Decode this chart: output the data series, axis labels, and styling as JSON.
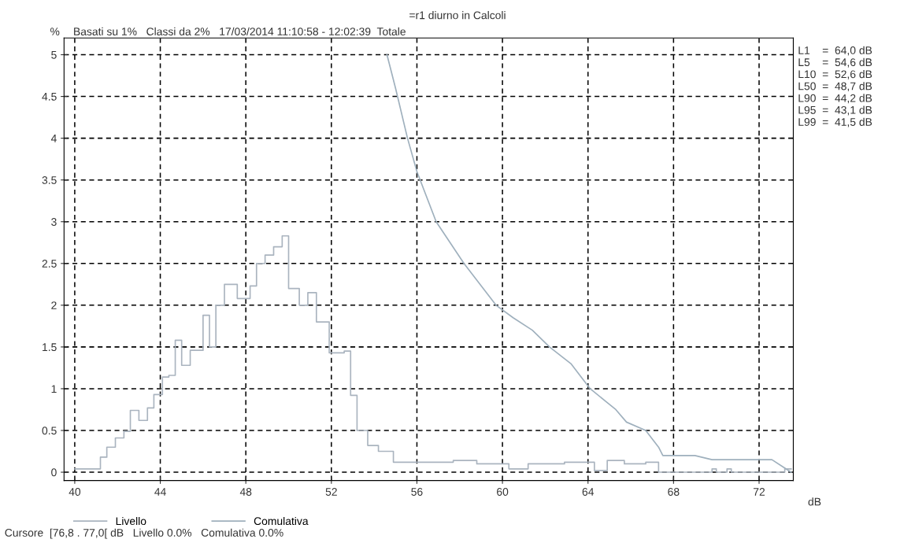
{
  "chart_data": {
    "type": "step",
    "title": "=r1 diurno in Calcoli",
    "subtitle": "Basati su 1%   Classi da 2%   17/03/2014 11:10:58 - 12:02:39  Totale",
    "ylabel": "%",
    "xlabel": "dB",
    "xlim": [
      39.5,
      73.6
    ],
    "xticks": [
      40,
      44,
      48,
      52,
      56,
      60,
      64,
      68,
      72
    ],
    "ylim": [
      -0.1,
      5.2
    ],
    "yticks": [
      0,
      0.5,
      1,
      1.5,
      2,
      2.5,
      3,
      3.5,
      4,
      4.5,
      5
    ],
    "grid": true,
    "legend": "bottom",
    "series": [
      {
        "name": "Livello",
        "color": "#aab4bf",
        "x": [
          40.0,
          40.9,
          41.2,
          41.5,
          41.9,
          42.3,
          42.6,
          43.0,
          43.4,
          43.7,
          44.1,
          44.4,
          44.7,
          45.0,
          45.4,
          46.0,
          46.3,
          46.6,
          47.0,
          47.6,
          48.2,
          48.5,
          48.9,
          49.3,
          49.7,
          50.0,
          50.5,
          50.9,
          51.3,
          51.9,
          52.6,
          52.9,
          53.2,
          53.7,
          54.2,
          54.9,
          56.6,
          57.7,
          58.8,
          60.3,
          61.2,
          62.9,
          64.3,
          64.9,
          65.7,
          66.7,
          67.3,
          69.8,
          70.0,
          70.5,
          70.7,
          73.2,
          73.5
        ],
        "values": [
          0.04,
          0.04,
          0.18,
          0.3,
          0.41,
          0.49,
          0.74,
          0.62,
          0.77,
          0.93,
          1.14,
          1.16,
          1.58,
          1.28,
          1.46,
          1.88,
          1.5,
          2.0,
          2.25,
          2.08,
          2.23,
          2.5,
          2.6,
          2.7,
          2.83,
          2.2,
          2.0,
          2.15,
          1.8,
          1.43,
          1.45,
          0.92,
          0.5,
          0.32,
          0.25,
          0.12,
          0.12,
          0.14,
          0.1,
          0.04,
          0.1,
          0.12,
          0.02,
          0.14,
          0.1,
          0.12,
          0.0,
          0.04,
          0.0,
          0.04,
          0.0,
          0.04,
          0.04
        ]
      },
      {
        "name": "Comulativa",
        "type": "line",
        "color": "#9fb0bd",
        "x": [
          54.6,
          55.0,
          55.56,
          56.0,
          56.9,
          58.2,
          59.7,
          60.5,
          61.4,
          62.2,
          63.2,
          64.1,
          65.3,
          65.8,
          66.7,
          67.3,
          67.5,
          69.0,
          69.8,
          72.0,
          72.6,
          73.2,
          73.5
        ],
        "values": [
          5.0,
          4.6,
          4.0,
          3.6,
          3.0,
          2.5,
          2.0,
          1.85,
          1.7,
          1.5,
          1.3,
          1.0,
          0.75,
          0.6,
          0.5,
          0.3,
          0.2,
          0.2,
          0.15,
          0.15,
          0.15,
          0.05,
          0.0
        ]
      }
    ],
    "annotations": [
      "L1    =  64,0 dB",
      "L5    =  54,6 dB",
      "L10  =  52,6 dB",
      "L50  =  48,7 dB",
      "L90  =  44,2 dB",
      "L95  =  43,1 dB",
      "L99  =  41,5 dB",
      "Cursore  [76,8 . 77,0[ dB   Livello 0.0%   Comulativa 0.0%"
    ]
  }
}
